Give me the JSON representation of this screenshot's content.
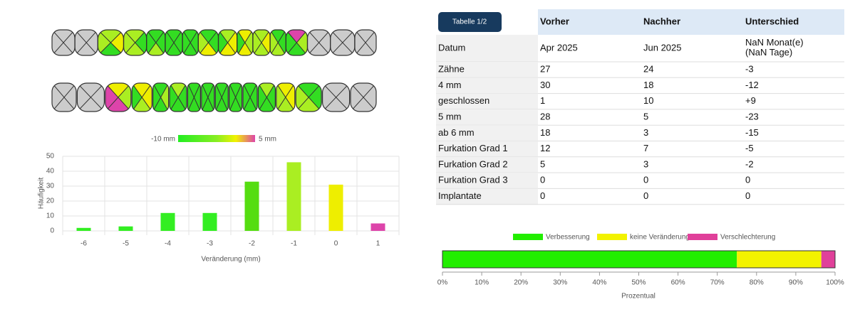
{
  "color_scale": {
    "min_label": "-10 mm",
    "max_label": "5 mm"
  },
  "chart_data": [
    {
      "type": "bar",
      "categories": [
        "-6",
        "-5",
        "-4",
        "-3",
        "-2",
        "-1",
        "0",
        "1"
      ],
      "values": [
        2,
        3,
        12,
        12,
        33,
        46,
        31,
        5
      ],
      "colors": [
        "#33ee22",
        "#33ee22",
        "#33ee22",
        "#33ee22",
        "#55dd11",
        "#aaee22",
        "#eeee00",
        "#dd44aa"
      ],
      "ylim": [
        0,
        50
      ],
      "yticks": [
        0,
        10,
        20,
        30,
        40,
        50
      ],
      "grid": true,
      "ylabel": "Häufigkeit",
      "xlabel": "Veränderung (mm)"
    },
    {
      "type": "stacked-hbar",
      "legend": "top",
      "series": [
        {
          "name": "Verbesserung",
          "color": "#22ee00",
          "values": [
            75
          ]
        },
        {
          "name": "keine Veränderung",
          "color": "#f2f200",
          "values": [
            21.5
          ]
        },
        {
          "name": "Verschlechterung",
          "color": "#e0409a",
          "values": [
            3.5
          ]
        }
      ],
      "xlim": [
        0,
        100
      ],
      "xticks": [
        {
          "value": 0,
          "label": "0%"
        },
        {
          "value": 10,
          "label": "10%"
        },
        {
          "value": 20,
          "label": "20%"
        },
        {
          "value": 30,
          "label": "30%"
        },
        {
          "value": 40,
          "label": "40%"
        },
        {
          "value": 50,
          "label": "50%"
        },
        {
          "value": 60,
          "label": "60%"
        },
        {
          "value": 70,
          "label": "70%"
        },
        {
          "value": 80,
          "label": "80%"
        },
        {
          "value": 90,
          "label": "90%"
        },
        {
          "value": 100,
          "label": "100%"
        }
      ],
      "xlabel": "Prozentual"
    }
  ],
  "table": {
    "title": "Tabelle 1/2",
    "columns": [
      "Vorher",
      "Nachher",
      "Unterschied"
    ],
    "rows": [
      [
        "Datum",
        "Apr 2025",
        "Jun 2025",
        "NaN Monat(e) (NaN Tage)"
      ],
      [
        "Zähne",
        "27",
        "24",
        "-3"
      ],
      [
        "4 mm",
        "30",
        "18",
        "-12"
      ],
      [
        "geschlossen",
        "1",
        "10",
        "+9"
      ],
      [
        "5 mm",
        "28",
        "5",
        "-23"
      ],
      [
        "ab 6 mm",
        "18",
        "3",
        "-15"
      ],
      [
        "Furkation Grad 1",
        "12",
        "7",
        "-5"
      ],
      [
        "Furkation Grad 2",
        "5",
        "3",
        "-2"
      ],
      [
        "Furkation Grad 3",
        "0",
        "0",
        "0"
      ],
      [
        "Implantate",
        "0",
        "0",
        "0"
      ]
    ]
  }
}
